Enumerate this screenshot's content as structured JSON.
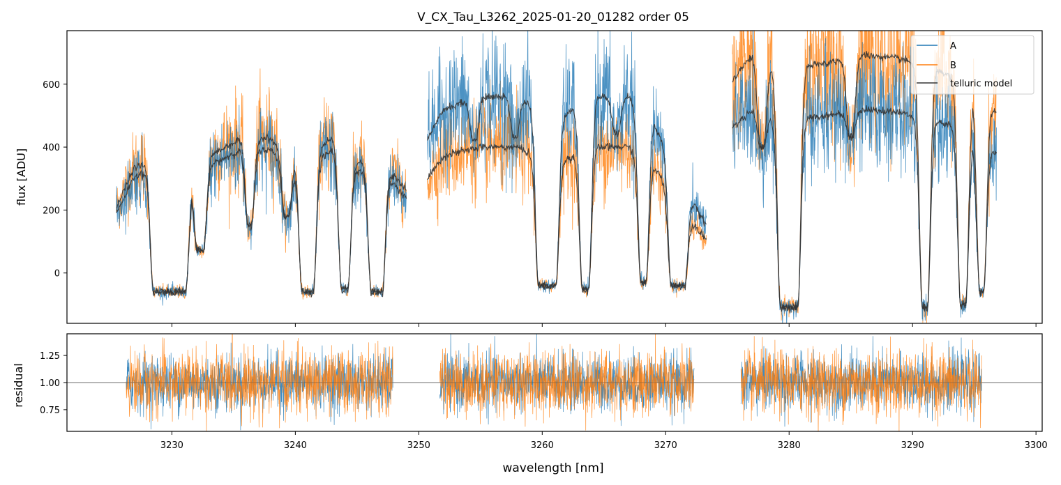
{
  "chart_data": [
    {
      "id": "top",
      "type": "line",
      "title": "V_CX_Tau_L3262_2025-01-20_01282  order 05",
      "ylabel": "flux [ADU]",
      "xlabel": "",
      "xlim": [
        3221.5,
        3300.5
      ],
      "ylim": [
        -160,
        770
      ],
      "xticks": [
        3230,
        3240,
        3250,
        3260,
        3270,
        3280,
        3290,
        3300
      ],
      "yticks": [
        0,
        200,
        400,
        600
      ],
      "ytick_labels": [
        "0",
        "200",
        "400",
        "600"
      ],
      "legend": {
        "position": "top-right",
        "entries": [
          {
            "label": "A",
            "color": "#1f77b4"
          },
          {
            "label": "B",
            "color": "#ff7f0e"
          },
          {
            "label": "telluric model",
            "color": "#333333"
          }
        ]
      },
      "segments": [
        {
          "x_range": [
            3225.5,
            3249.0
          ],
          "continuum_A": 330,
          "continuum_B": 360,
          "continuum_points": [
            [
              3225.5,
              190
            ],
            [
              3227.0,
              310
            ],
            [
              3229.0,
              320
            ],
            [
              3230.5,
              190
            ],
            [
              3233.0,
              340
            ],
            [
              3236.0,
              400
            ],
            [
              3238.0,
              390
            ],
            [
              3240.0,
              320
            ],
            [
              3243.0,
              390
            ],
            [
              3245.0,
              320
            ],
            [
              3247.0,
              320
            ],
            [
              3249.0,
              240
            ]
          ],
          "absorption_bands": [
            {
              "center": 3229.8,
              "width": 2.6,
              "floor": -60
            },
            {
              "center": 3232.3,
              "width": 0.5,
              "floor": 70
            },
            {
              "center": 3236.3,
              "width": 0.25,
              "floor": 150
            },
            {
              "center": 3241.0,
              "width": 0.9,
              "floor": -60
            },
            {
              "center": 3244.0,
              "width": 0.5,
              "floor": -50
            },
            {
              "center": 3246.6,
              "width": 0.9,
              "floor": -60
            },
            {
              "center": 3239.3,
              "width": 0.3,
              "floor": 180
            }
          ]
        },
        {
          "x_range": [
            3250.7,
            3273.3
          ],
          "continuum_A": 560,
          "continuum_B": 400,
          "continuum_points": [
            [
              3250.7,
              420
            ],
            [
              3252.0,
              520
            ],
            [
              3255.0,
              560
            ],
            [
              3258.0,
              560
            ],
            [
              3261.0,
              480
            ],
            [
              3264.0,
              560
            ],
            [
              3267.0,
              560
            ],
            [
              3269.0,
              480
            ],
            [
              3271.0,
              300
            ],
            [
              3273.3,
              150
            ]
          ],
          "absorption_bands": [
            {
              "center": 3260.4,
              "width": 1.4,
              "floor": -40
            },
            {
              "center": 3263.5,
              "width": 0.5,
              "floor": -50
            },
            {
              "center": 3268.2,
              "width": 0.4,
              "floor": -30
            },
            {
              "center": 3271.0,
              "width": 1.1,
              "floor": -40
            },
            {
              "center": 3254.5,
              "width": 0.2,
              "floor": 420
            },
            {
              "center": 3257.8,
              "width": 0.2,
              "floor": 430
            },
            {
              "center": 3266.0,
              "width": 0.2,
              "floor": 440
            }
          ]
        },
        {
          "x_range": [
            3275.4,
            3296.8
          ],
          "continuum_A": 510,
          "continuum_B": 680,
          "continuum_points": [
            [
              3275.4,
              460
            ],
            [
              3277.0,
              520
            ],
            [
              3279.0,
              480
            ],
            [
              3283.0,
              500
            ],
            [
              3286.0,
              520
            ],
            [
              3289.0,
              510
            ],
            [
              3293.0,
              470
            ],
            [
              3296.8,
              380
            ]
          ],
          "absorption_bands": [
            {
              "center": 3280.0,
              "width": 1.4,
              "floor": -110
            },
            {
              "center": 3291.0,
              "width": 0.4,
              "floor": -110
            },
            {
              "center": 3294.1,
              "width": 0.4,
              "floor": -100
            },
            {
              "center": 3295.6,
              "width": 0.3,
              "floor": -60
            },
            {
              "center": 3277.8,
              "width": 0.25,
              "floor": 400
            },
            {
              "center": 3285.0,
              "width": 0.2,
              "floor": 430
            }
          ]
        }
      ],
      "noise_scale": 0.18
    },
    {
      "id": "bottom",
      "type": "line",
      "title": "",
      "xlabel": "wavelength [nm]",
      "ylabel": "residual",
      "xlim": [
        3221.5,
        3300.5
      ],
      "ylim": [
        0.55,
        1.45
      ],
      "xticks": [
        3230,
        3240,
        3250,
        3260,
        3270,
        3280,
        3290,
        3300
      ],
      "xtick_labels": [
        "3230",
        "3240",
        "3250",
        "3260",
        "3270",
        "3280",
        "3290",
        "3300"
      ],
      "yticks": [
        0.75,
        1.0,
        1.25
      ],
      "ytick_labels": [
        "0.75",
        "1.00",
        "1.25"
      ],
      "reference_line": 1.0,
      "segments": [
        {
          "x_range": [
            3226.3,
            3247.9
          ]
        },
        {
          "x_range": [
            3251.7,
            3272.3
          ]
        },
        {
          "x_range": [
            3276.1,
            3295.6
          ]
        }
      ],
      "series": [
        {
          "name": "A",
          "color": "#1f77b4",
          "center": 1.0,
          "spread": 0.13
        },
        {
          "name": "B",
          "color": "#ff7f0e",
          "center": 1.0,
          "spread": 0.15
        }
      ]
    }
  ]
}
